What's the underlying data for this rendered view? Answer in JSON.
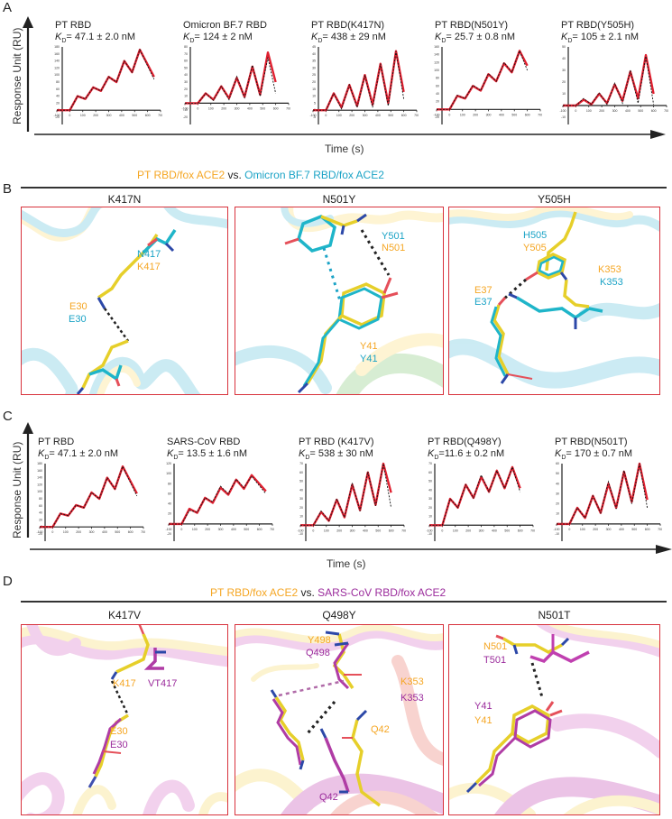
{
  "colors": {
    "pt": "#f5a623",
    "omicron": "#1ba3c6",
    "sars": "#9b2c9c",
    "fit_red": "#e02030",
    "box_border": "#d8323c"
  },
  "panelA": {
    "letter": "A",
    "ylabel": "Response Unit (RU)",
    "xlabel": "Time (s)",
    "plots": [
      {
        "title": "PT RBD",
        "kd_label": "K",
        "kd_sub": "D",
        "kd_value": "= 47.1 ± 2.0 nM"
      },
      {
        "title": "Omicron BF.7 RBD",
        "kd_label": "K",
        "kd_sub": "D",
        "kd_value": "= 124 ± 2 nM"
      },
      {
        "title": "PT RBD(K417N)",
        "kd_label": "K",
        "kd_sub": "D",
        "kd_value": "= 438 ± 29 nM"
      },
      {
        "title": "PT RBD(N501Y)",
        "kd_label": "K",
        "kd_sub": "D",
        "kd_value": "= 25.7 ± 0.8 nM"
      },
      {
        "title": "PT RBD(Y505H)",
        "kd_label": "K",
        "kd_sub": "D",
        "kd_value": "= 105 ± 2.1 nM"
      }
    ]
  },
  "panelB": {
    "letter": "B",
    "compare_left": "PT RBD/fox ACE2",
    "compare_vs": " vs. ",
    "compare_right": "Omicron BF.7 RBD/fox ACE2",
    "boxes": [
      {
        "title": "K417N",
        "labels": {
          "a1": "N417",
          "a2": "K417",
          "b1": "E30",
          "b2": "E30"
        }
      },
      {
        "title": "N501Y",
        "labels": {
          "a1": "Y501",
          "a2": "N501",
          "b1": "Y41",
          "b2": "Y41"
        }
      },
      {
        "title": "Y505H",
        "labels": {
          "a1": "H505",
          "a2": "Y505",
          "b1": "E37",
          "b2": "E37",
          "c1": "K353",
          "c2": "K353"
        }
      }
    ]
  },
  "panelC": {
    "letter": "C",
    "ylabel": "Response Unit (RU)",
    "xlabel": "Time (s)",
    "plots": [
      {
        "title": "PT RBD",
        "kd_label": "K",
        "kd_sub": "D",
        "kd_value": "= 47.1 ± 2.0 nM"
      },
      {
        "title": "SARS-CoV RBD",
        "kd_label": "K",
        "kd_sub": "D",
        "kd_value": "= 13.5 ± 1.6 nM"
      },
      {
        "title": "PT RBD (K417V)",
        "kd_label": "K",
        "kd_sub": "D",
        "kd_value": "= 538 ± 30 nM"
      },
      {
        "title": "PT RBD(Q498Y)",
        "kd_label": "K",
        "kd_sub": "D",
        "kd_value": "=11.6 ± 0.2 nM"
      },
      {
        "title": "PT RBD(N501T)",
        "kd_label": "K",
        "kd_sub": "D",
        "kd_value": "= 170 ± 0.7 nM"
      }
    ]
  },
  "panelD": {
    "letter": "D",
    "compare_left": "PT RBD/fox ACE2",
    "compare_vs": " vs. ",
    "compare_right": "SARS-CoV RBD/fox ACE2",
    "boxes": [
      {
        "title": "K417V",
        "labels": {
          "a1": "K417",
          "a2": "VT417",
          "b1": "E30",
          "b2": "E30"
        }
      },
      {
        "title": "Q498Y",
        "labels": {
          "a1": "Y498",
          "a2": "Q498",
          "b1": "K353",
          "b2": "K353",
          "c1": "Q42",
          "c2": "Q42"
        }
      },
      {
        "title": "N501T",
        "labels": {
          "a1": "N501",
          "a2": "T501",
          "b1": "Y41",
          "b2": "Y41"
        }
      }
    ]
  },
  "chart_data": [
    {
      "type": "line",
      "title": "PT RBD",
      "subtitle": "KD = 47.1 ± 2.0 nM",
      "xlabel": "Time (s)",
      "ylabel": "Response Unit (RU)",
      "xlim": [
        -100,
        700
      ],
      "ylim": [
        -20,
        180
      ],
      "x": [
        -100,
        0,
        60,
        120,
        180,
        240,
        300,
        360,
        420,
        480,
        540,
        650
      ],
      "series": [
        {
          "name": "data",
          "values": [
            0,
            0,
            40,
            32,
            65,
            55,
            95,
            80,
            140,
            108,
            172,
            95
          ]
        },
        {
          "name": "fit",
          "values": [
            0,
            0,
            40,
            32,
            65,
            55,
            95,
            80,
            140,
            108,
            172,
            88
          ]
        }
      ]
    },
    {
      "type": "line",
      "title": "Omicron BF.7 RBD",
      "subtitle": "KD = 124 ± 2 nM",
      "xlabel": "Time (s)",
      "ylabel": "Response Unit (RU)",
      "xlim": [
        -100,
        700
      ],
      "ylim": [
        -20,
        80
      ],
      "x": [
        -100,
        0,
        60,
        120,
        180,
        240,
        300,
        360,
        420,
        480,
        540,
        600
      ],
      "series": [
        {
          "name": "data",
          "values": [
            0,
            0,
            14,
            5,
            24,
            7,
            36,
            9,
            52,
            12,
            72,
            30
          ]
        },
        {
          "name": "fit",
          "values": [
            0,
            0,
            14,
            4,
            24,
            5,
            38,
            8,
            54,
            10,
            65,
            14
          ]
        }
      ]
    },
    {
      "type": "line",
      "title": "PT RBD(K417N)",
      "subtitle": "KD = 438 ± 29 nM",
      "xlabel": "Time (s)",
      "ylabel": "Response Unit (RU)",
      "xlim": [
        -100,
        700
      ],
      "ylim": [
        -5,
        45
      ],
      "x": [
        -100,
        0,
        60,
        120,
        180,
        240,
        300,
        360,
        420,
        480,
        540,
        600
      ],
      "series": [
        {
          "name": "data",
          "values": [
            0,
            0,
            12,
            2,
            18,
            3,
            25,
            4,
            33,
            5,
            42,
            13
          ]
        },
        {
          "name": "fit",
          "values": [
            0,
            0,
            12,
            1,
            18,
            2,
            25,
            2,
            33,
            3,
            42,
            8
          ]
        }
      ]
    },
    {
      "type": "line",
      "title": "PT RBD(N501Y)",
      "subtitle": "KD = 25.7 ± 0.8 nM",
      "xlabel": "Time (s)",
      "ylabel": "Response Unit (RU)",
      "xlim": [
        -100,
        700
      ],
      "ylim": [
        -20,
        160
      ],
      "x": [
        -100,
        0,
        60,
        120,
        180,
        240,
        300,
        360,
        420,
        480,
        540,
        600
      ],
      "series": [
        {
          "name": "data",
          "values": [
            0,
            0,
            35,
            28,
            60,
            48,
            90,
            72,
            118,
            95,
            150,
            112
          ]
        },
        {
          "name": "fit",
          "values": [
            0,
            0,
            36,
            28,
            62,
            48,
            92,
            72,
            120,
            95,
            150,
            100
          ]
        }
      ]
    },
    {
      "type": "line",
      "title": "PT RBD(Y505H)",
      "subtitle": "KD = 105 ± 2.1 nM",
      "xlabel": "Time (s)",
      "ylabel": "Response Unit (RU)",
      "xlim": [
        -100,
        700
      ],
      "ylim": [
        -10,
        50
      ],
      "x": [
        -100,
        0,
        60,
        120,
        180,
        240,
        300,
        360,
        420,
        480,
        540,
        600
      ],
      "series": [
        {
          "name": "data",
          "values": [
            0,
            0,
            5,
            1,
            10,
            2,
            18,
            4,
            29,
            6,
            43,
            10
          ]
        },
        {
          "name": "fit",
          "values": [
            0,
            0,
            6,
            1,
            11,
            1,
            19,
            2,
            30,
            2,
            42,
            1
          ]
        }
      ]
    },
    {
      "type": "line",
      "title": "PT RBD",
      "subtitle": "KD = 47.1 ± 2.0 nM",
      "xlabel": "Time (s)",
      "ylabel": "Response Unit (RU)",
      "xlim": [
        -100,
        700
      ],
      "ylim": [
        -20,
        180
      ],
      "x": [
        -100,
        0,
        60,
        120,
        180,
        240,
        300,
        360,
        420,
        480,
        540,
        650
      ],
      "series": [
        {
          "name": "data",
          "values": [
            0,
            0,
            38,
            32,
            62,
            55,
            98,
            80,
            140,
            108,
            172,
            95
          ]
        },
        {
          "name": "fit",
          "values": [
            0,
            0,
            38,
            32,
            62,
            55,
            98,
            80,
            140,
            108,
            172,
            88
          ]
        }
      ]
    },
    {
      "type": "line",
      "title": "SARS-CoV RBD",
      "subtitle": "KD = 13.5 ± 1.6 nM",
      "xlabel": "Time (s)",
      "ylabel": "Response Unit (RU)",
      "xlim": [
        -100,
        700
      ],
      "ylim": [
        -20,
        120
      ],
      "x": [
        -100,
        0,
        60,
        120,
        180,
        240,
        300,
        360,
        420,
        480,
        540,
        650
      ],
      "series": [
        {
          "name": "data",
          "values": [
            0,
            0,
            30,
            22,
            52,
            42,
            72,
            58,
            88,
            70,
            97,
            65
          ]
        },
        {
          "name": "fit",
          "values": [
            0,
            0,
            27,
            23,
            52,
            44,
            75,
            60,
            89,
            72,
            95,
            60
          ]
        }
      ]
    },
    {
      "type": "line",
      "title": "PT RBD (K417V)",
      "subtitle": "KD = 538 ± 30 nM",
      "xlabel": "Time (s)",
      "ylabel": "Response Unit (RU)",
      "xlim": [
        -100,
        700
      ],
      "ylim": [
        -10,
        70
      ],
      "x": [
        -100,
        0,
        60,
        120,
        180,
        240,
        300,
        360,
        420,
        480,
        540,
        600
      ],
      "series": [
        {
          "name": "data",
          "values": [
            0,
            0,
            15,
            5,
            29,
            9,
            46,
            17,
            60,
            23,
            70,
            37
          ]
        },
        {
          "name": "fit",
          "values": [
            0,
            0,
            16,
            5,
            30,
            9,
            48,
            16,
            61,
            22,
            70,
            20
          ]
        }
      ]
    },
    {
      "type": "line",
      "title": "PT RBD(Q498Y)",
      "subtitle": "KD = 11.6 ± 0.2 nM",
      "xlabel": "Time (s)",
      "ylabel": "Response Unit (RU)",
      "xlim": [
        -100,
        700
      ],
      "ylim": [
        -10,
        70
      ],
      "x": [
        -100,
        0,
        60,
        120,
        180,
        240,
        300,
        360,
        420,
        480,
        540,
        600
      ],
      "series": [
        {
          "name": "data",
          "values": [
            0,
            0,
            30,
            20,
            46,
            31,
            55,
            38,
            62,
            42,
            66,
            42
          ]
        },
        {
          "name": "fit",
          "values": [
            0,
            0,
            30,
            20,
            46,
            31,
            57,
            38,
            62,
            42,
            66,
            38
          ]
        }
      ]
    },
    {
      "type": "line",
      "title": "PT RBD(N501T)",
      "subtitle": "KD = 170 ± 0.7 nM",
      "xlabel": "Time (s)",
      "ylabel": "Response Unit (RU)",
      "xlim": [
        -100,
        700
      ],
      "ylim": [
        -10,
        60
      ],
      "x": [
        -100,
        0,
        60,
        120,
        180,
        240,
        300,
        360,
        420,
        480,
        540,
        600
      ],
      "series": [
        {
          "name": "data",
          "values": [
            0,
            0,
            16,
            6,
            28,
            11,
            40,
            16,
            52,
            22,
            60,
            24
          ]
        },
        {
          "name": "fit",
          "values": [
            0,
            0,
            16,
            6,
            28,
            11,
            42,
            15,
            53,
            20,
            60,
            16
          ]
        }
      ]
    }
  ]
}
